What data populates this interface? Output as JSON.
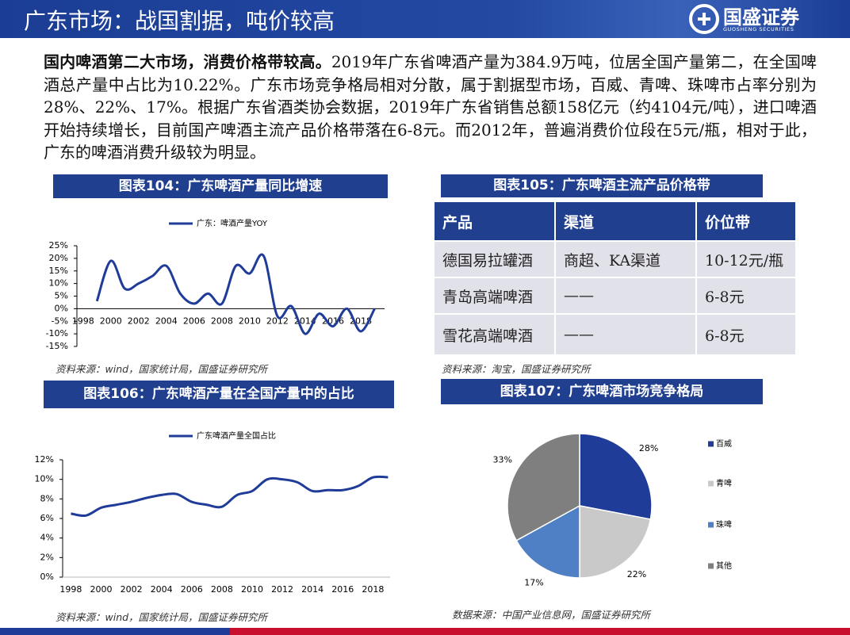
{
  "header": {
    "title": "广东市场：战国割据，吨价较高",
    "logo": "国盛证券",
    "logo_sub": "GUOSHENG SECURITIES"
  },
  "body": {
    "lead": "国内啤酒第二大市场，消费价格带较高。",
    "text": "2019年广东省啤酒产量为384.9万吨，位居全国产量第二，在全国啤酒总产量中占比为10.22%。广东市场竞争格局相对分散，属于割据型市场，百威、青啤、珠啤市占率分别为28%、22%、17%。根据广东省酒类协会数据，2019年广东省销售总额158亿元（约4104元/吨），进口啤酒开始持续增长，目前国产啤酒主流产品价格带落在6-8元。而2012年，普遍消费价位段在5元/瓶，相对于此，广东的啤酒消费升级较为明显。"
  },
  "chart_data": [
    {
      "type": "line",
      "title": "图表104：广东啤酒产量同比增速",
      "source": "资料来源：wind，国家统计局，国盛证券研究所",
      "x": [
        1999,
        2000,
        2001,
        2002,
        2003,
        2004,
        2005,
        2006,
        2007,
        2008,
        2009,
        2010,
        2011,
        2012,
        2013,
        2014,
        2015,
        2016,
        2017,
        2018,
        2019
      ],
      "series": [
        {
          "name": "广东：啤酒产量YOY",
          "color": "#1f3c99",
          "values": [
            3,
            19,
            8,
            10,
            13,
            17,
            6,
            2,
            6,
            2,
            17,
            14,
            21,
            -3,
            1,
            -10,
            -2,
            -7,
            0,
            -9,
            0
          ]
        }
      ],
      "xlim": [
        1997.5,
        2020
      ],
      "xticks": [
        1998,
        2000,
        2002,
        2004,
        2006,
        2008,
        2010,
        2012,
        2014,
        2016,
        2018
      ],
      "ylim": [
        -15,
        25
      ],
      "yticks": [
        {
          "value": -15,
          "label": "-15%"
        },
        {
          "value": -10,
          "label": "-10%"
        },
        {
          "value": -5,
          "label": "-5%"
        },
        {
          "value": 0,
          "label": "0%"
        },
        {
          "value": 5,
          "label": "5%"
        },
        {
          "value": 10,
          "label": "10%"
        },
        {
          "value": 15,
          "label": "15%"
        },
        {
          "value": 20,
          "label": "20%"
        },
        {
          "value": 25,
          "label": "25%"
        }
      ],
      "grid": false
    },
    {
      "type": "line",
      "title": "图表106：广东啤酒产量在全国产量中的占比",
      "source": "资料来源：wind，国家统计局，国盛证券研究所",
      "x": [
        1998,
        1999,
        2000,
        2001,
        2002,
        2003,
        2004,
        2005,
        2006,
        2007,
        2008,
        2009,
        2010,
        2011,
        2012,
        2013,
        2014,
        2015,
        2016,
        2017,
        2018,
        2019
      ],
      "series": [
        {
          "name": "广东啤酒产量全国占比",
          "color": "#1f3c99",
          "values": [
            6.5,
            6.3,
            7.1,
            7.4,
            7.7,
            8.1,
            8.4,
            8.5,
            7.7,
            7.4,
            7.2,
            8.4,
            8.8,
            10.0,
            10.0,
            9.7,
            8.8,
            8.9,
            8.9,
            9.3,
            10.2,
            10.22
          ]
        }
      ],
      "xlim": [
        1997.4,
        2019.4
      ],
      "xticks": [
        1998,
        2000,
        2002,
        2004,
        2006,
        2008,
        2010,
        2012,
        2014,
        2016,
        2018
      ],
      "ylim": [
        0,
        12
      ],
      "yticks": [
        {
          "value": 0,
          "label": "0%"
        },
        {
          "value": 2,
          "label": "2%"
        },
        {
          "value": 4,
          "label": "4%"
        },
        {
          "value": 6,
          "label": "6%"
        },
        {
          "value": 8,
          "label": "8%"
        },
        {
          "value": 10,
          "label": "10%"
        },
        {
          "value": 12,
          "label": "12%"
        }
      ],
      "grid": false
    },
    {
      "type": "pie",
      "title": "图表107：广东啤酒市场竞争格局",
      "source": "数据来源：中国产业信息网，国盛证券研究所",
      "categories": [
        "百威",
        "青啤",
        "珠啤",
        "其他"
      ],
      "values": [
        28,
        22,
        17,
        33
      ],
      "value_labels": [
        "28%",
        "22%",
        "17%",
        "33%"
      ],
      "colors": [
        "#1f3c99",
        "#c9c9c9",
        "#4f7fc4",
        "#7f7f7f"
      ]
    }
  ],
  "table": {
    "title": "图表105：广东啤酒主流产品价格带",
    "source": "资料来源：淘宝，国盛证券研究所",
    "header": [
      "产品",
      "渠道",
      "价位带"
    ],
    "rows": [
      [
        "德国易拉罐酒",
        "商超、KA渠道",
        "10-12元/瓶"
      ],
      [
        "青岛高端啤酒",
        "——",
        "6-8元"
      ],
      [
        "雪花高端啤酒",
        "——",
        "6-8元"
      ]
    ]
  }
}
